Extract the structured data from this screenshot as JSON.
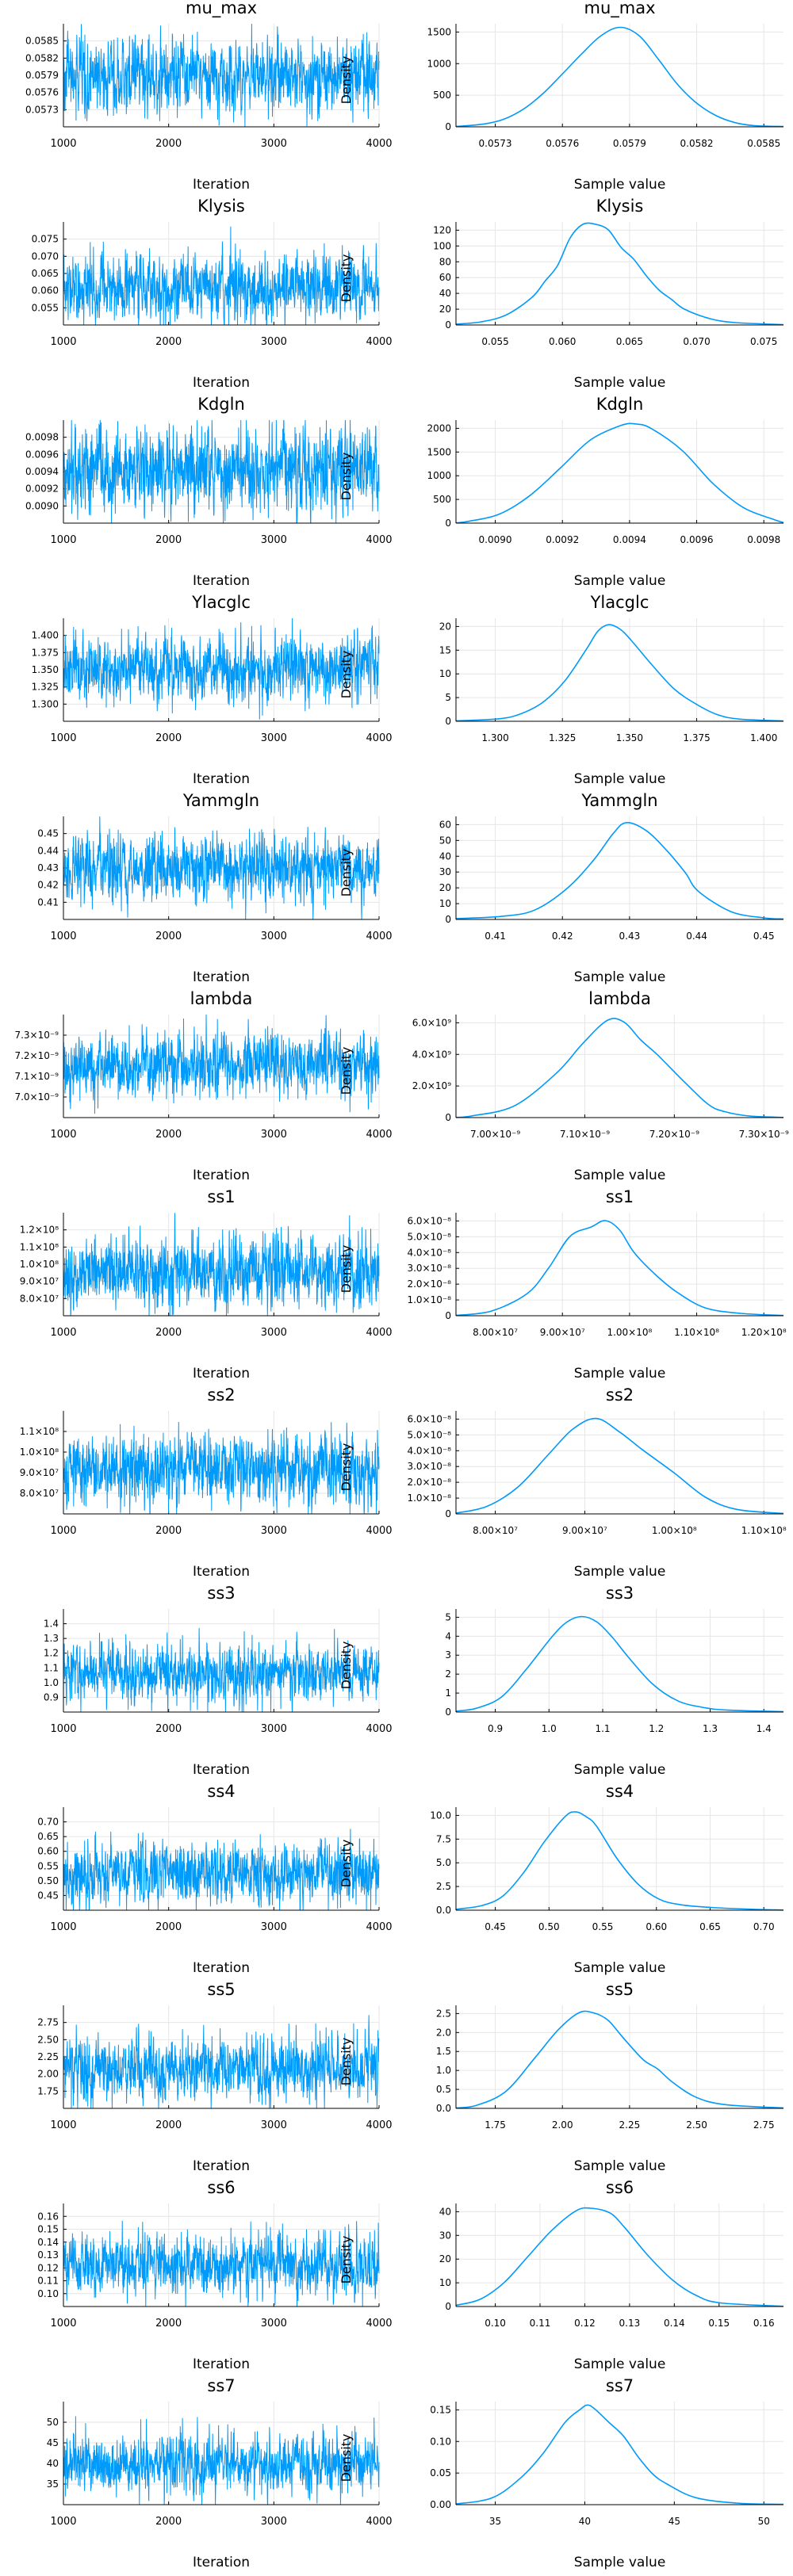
{
  "figure_title": "",
  "chart_data": [
    {
      "param": "mu_max",
      "type": "line",
      "title": "mu_max",
      "xlabel": "Iteration",
      "ylabel": "",
      "xlim": [
        1000,
        4000
      ],
      "xticks": [
        "1000",
        "2000",
        "3000",
        "4000"
      ],
      "yticks": [
        "0.0573",
        "0.0576",
        "0.0579",
        "0.0582",
        "0.0585"
      ],
      "ylim": [
        0.05715,
        0.05865
      ],
      "mean": 0.0579,
      "sd": 0.00024,
      "spike": 0.00055
    },
    {
      "param": "mu_max",
      "type": "line",
      "title": "mu_max",
      "xlabel": "Sample value",
      "ylabel": "Density",
      "xlim": [
        0.05705,
        0.05875
      ],
      "xticks": [
        "0.0573",
        "0.0576",
        "0.0579",
        "0.0582",
        "0.0585"
      ],
      "ylim": [
        0,
        1750
      ],
      "yticks": [
        "0",
        "500",
        "1000",
        "1500"
      ],
      "x": [
        0.05705,
        0.0572,
        0.0573,
        0.0574,
        0.0575,
        0.0576,
        0.0577,
        0.0578,
        0.0579,
        0.058,
        0.0581,
        0.0582,
        0.0583,
        0.0584,
        0.0585,
        0.0586,
        0.05875
      ],
      "y": [
        5,
        50,
        130,
        300,
        560,
        890,
        1230,
        1540,
        1690,
        1550,
        1150,
        720,
        400,
        190,
        70,
        20,
        5
      ]
    },
    {
      "param": "Klysis",
      "type": "line",
      "title": "Klysis",
      "xlabel": "Iteration",
      "ylabel": "",
      "xlim": [
        1000,
        4000
      ],
      "xticks": [
        "1000",
        "2000",
        "3000",
        "4000"
      ],
      "yticks": [
        "0.055",
        "0.060",
        "0.065",
        "0.070",
        "0.075"
      ],
      "ylim": [
        0.052,
        0.077
      ],
      "mean": 0.061,
      "sd": 0.0035,
      "spike": 0.011
    },
    {
      "param": "Klysis",
      "type": "line",
      "title": "Klysis",
      "xlabel": "Sample value",
      "ylabel": "Density",
      "xlim": [
        0.05,
        0.0758
      ],
      "xticks": [
        "0.055",
        "0.060",
        "0.065",
        "0.070",
        "0.075"
      ],
      "ylim": [
        0,
        130
      ],
      "yticks": [
        "0",
        "20",
        "40",
        "60",
        "80",
        "100",
        "120"
      ],
      "x": [
        0.05,
        0.052,
        0.054,
        0.056,
        0.057,
        0.058,
        0.059,
        0.06,
        0.061,
        0.062,
        0.063,
        0.064,
        0.065,
        0.066,
        0.067,
        0.068,
        0.07,
        0.072,
        0.0758
      ],
      "y": [
        1,
        4,
        13,
        35,
        55,
        75,
        110,
        127,
        127,
        120,
        98,
        83,
        62,
        44,
        32,
        20,
        8,
        3,
        0.5
      ]
    },
    {
      "param": "Kdgln",
      "type": "line",
      "title": "Kdgln",
      "xlabel": "Iteration",
      "ylabel": "",
      "xlim": [
        1000,
        4000
      ],
      "xticks": [
        "1000",
        "2000",
        "3000",
        "4000"
      ],
      "yticks": [
        "0.0090",
        "0.0092",
        "0.0094",
        "0.0096",
        "0.0098"
      ],
      "ylim": [
        0.0089,
        0.0099
      ],
      "mean": 0.00941,
      "sd": 0.00018,
      "spike": 0.0005
    },
    {
      "param": "Kdgln",
      "type": "line",
      "title": "Kdgln",
      "xlabel": "Sample value",
      "ylabel": "Density",
      "xlim": [
        0.00886,
        0.00993
      ],
      "xticks": [
        "0.0090",
        "0.0092",
        "0.0094",
        "0.0096",
        "0.0098"
      ],
      "ylim": [
        0,
        2350
      ],
      "yticks": [
        "0",
        "500",
        "1000",
        "1500",
        "2000"
      ],
      "x": [
        0.00886,
        0.0089,
        0.009,
        0.0091,
        0.0092,
        0.0093,
        0.0094,
        0.00945,
        0.0095,
        0.0096,
        0.0097,
        0.0098,
        0.0099,
        0.00993
      ],
      "y": [
        5,
        40,
        200,
        620,
        1250,
        1900,
        2230,
        2260,
        2150,
        1650,
        900,
        350,
        80,
        15
      ]
    },
    {
      "param": "Ylacglc",
      "type": "line",
      "title": "Ylacglc",
      "xlabel": "Iteration",
      "ylabel": "",
      "xlim": [
        1000,
        4000
      ],
      "xticks": [
        "1000",
        "2000",
        "3000",
        "4000"
      ],
      "yticks": [
        "1.300",
        "1.325",
        "1.350",
        "1.375",
        "1.400"
      ],
      "ylim": [
        1.29,
        1.41
      ],
      "mean": 1.351,
      "sd": 0.017,
      "spike": 0.05
    },
    {
      "param": "Ylacglc",
      "type": "line",
      "title": "Ylacglc",
      "xlabel": "Sample value",
      "ylabel": "Density",
      "xlim": [
        1.28,
        1.43
      ],
      "xticks": [
        "1.300",
        "1.325",
        "1.350",
        "1.375",
        "1.400"
      ],
      "ylim": [
        0,
        24
      ],
      "yticks": [
        "0",
        "5",
        "10",
        "15",
        "20"
      ],
      "x": [
        1.28,
        1.3,
        1.31,
        1.32,
        1.33,
        1.34,
        1.345,
        1.35,
        1.355,
        1.36,
        1.37,
        1.38,
        1.39,
        1.4,
        1.41,
        1.43
      ],
      "y": [
        0.1,
        0.6,
        1.8,
        4.5,
        9.5,
        17,
        21,
        22.5,
        21.5,
        19,
        13,
        7.5,
        4,
        1.5,
        0.5,
        0.1
      ]
    },
    {
      "param": "Yammgln",
      "type": "line",
      "title": "Yammgln",
      "xlabel": "Iteration",
      "ylabel": "",
      "xlim": [
        1000,
        4000
      ],
      "xticks": [
        "1000",
        "2000",
        "3000",
        "4000"
      ],
      "yticks": [
        "0.41",
        "0.42",
        "0.43",
        "0.44",
        "0.45"
      ],
      "ylim": [
        0.407,
        0.452
      ],
      "mean": 0.429,
      "sd": 0.0065,
      "spike": 0.018
    },
    {
      "param": "Yammgln",
      "type": "line",
      "title": "Yammgln",
      "xlabel": "Sample value",
      "ylabel": "Density",
      "xlim": [
        0.403,
        0.453
      ],
      "xticks": [
        "0.41",
        "0.42",
        "0.43",
        "0.44",
        "0.45"
      ],
      "ylim": [
        0,
        66
      ],
      "yticks": [
        "0",
        "10",
        "20",
        "30",
        "40",
        "50",
        "60"
      ],
      "x": [
        0.403,
        0.41,
        0.415,
        0.42,
        0.424,
        0.427,
        0.429,
        0.432,
        0.435,
        0.438,
        0.44,
        0.445,
        0.45,
        0.453
      ],
      "y": [
        0.5,
        2,
        6,
        20,
        38,
        55,
        62,
        57,
        45,
        30,
        18,
        5,
        1,
        0.3
      ]
    },
    {
      "param": "lambda",
      "type": "line",
      "title": "lambda",
      "xlabel": "Iteration",
      "ylabel": "",
      "xlim": [
        1000,
        4000
      ],
      "xticks": [
        "1000",
        "2000",
        "3000",
        "4000"
      ],
      "yticks": [
        "7.0×10⁻⁹",
        "7.1×10⁻⁹",
        "7.2×10⁻⁹",
        "7.3×10⁻⁹"
      ],
      "ylim": [
        6.98e-09,
        7.34e-09
      ],
      "mean": 7.165e-09,
      "sd": 5e-11,
      "spike": 1.4e-10
    },
    {
      "param": "lambda",
      "type": "line",
      "title": "lambda",
      "xlabel": "Sample value",
      "ylabel": "Density",
      "xlim": [
        6.98e-09,
        7.37e-09
      ],
      "xticks": [
        "7.00×10⁻⁹",
        "7.10×10⁻⁹",
        "7.20×10⁻⁹",
        "7.30×10⁻⁹"
      ],
      "ylim": [
        0,
        6900000000.0
      ],
      "yticks": [
        "0",
        "2.0×10⁹",
        "4.0×10⁹",
        "6.0×10⁹"
      ],
      "x": [
        6.98e-09,
        7e-09,
        7.05e-09,
        7.1e-09,
        7.13e-09,
        7.16e-09,
        7.18e-09,
        7.2e-09,
        7.22e-09,
        7.25e-09,
        7.28e-09,
        7.3e-09,
        7.33e-09,
        7.37e-09
      ],
      "y": [
        10000000.0,
        120000000.0,
        800000000.0,
        3000000000.0,
        4900000000.0,
        6500000000.0,
        6400000000.0,
        5200000000.0,
        4200000000.0,
        2500000000.0,
        900000000.0,
        400000000.0,
        100000000.0,
        10000000.0
      ]
    },
    {
      "param": "ss1",
      "type": "line",
      "title": "ss1",
      "xlabel": "Iteration",
      "ylabel": "",
      "xlim": [
        1000,
        4000
      ],
      "xticks": [
        "1000",
        "2000",
        "3000",
        "4000"
      ],
      "yticks": [
        "8.0×10⁷",
        "9.0×10⁷",
        "1.0×10⁸",
        "1.1×10⁸",
        "1.2×10⁸"
      ],
      "ylim": [
        77000000.0,
        122000000.0
      ],
      "mean": 96000000.0,
      "sd": 6800000.0,
      "spike": 20000000.0
    },
    {
      "param": "ss1",
      "type": "line",
      "title": "ss1",
      "xlabel": "Sample value",
      "ylabel": "Density",
      "xlim": [
        75000000.0,
        121000000.0
      ],
      "xticks": [
        "8.00×10⁷",
        "9.00×10⁷",
        "1.00×10⁸",
        "1.10×10⁸",
        "1.20×10⁸"
      ],
      "ylim": [
        0,
        6.5e-08
      ],
      "yticks": [
        "0",
        "1.0×10⁻⁸",
        "2.0×10⁻⁸",
        "3.0×10⁻⁸",
        "4.0×10⁻⁸",
        "5.0×10⁻⁸",
        "6.0×10⁻⁸"
      ],
      "x": [
        75000000.0,
        80000000.0,
        85000000.0,
        88000000.0,
        91000000.0,
        94000000.0,
        96000000.0,
        98000000.0,
        100000000.0,
        103000000.0,
        106000000.0,
        110000000.0,
        115000000.0,
        121000000.0
      ],
      "y": [
        2e-10,
        3e-09,
        1.4e-08,
        3e-08,
        5e-08,
        5.6e-08,
        6e-08,
        5.4e-08,
        4e-08,
        2.6e-08,
        1.5e-08,
        5e-09,
        1.5e-09,
        2e-10
      ]
    },
    {
      "param": "ss2",
      "type": "line",
      "title": "ss2",
      "xlabel": "Iteration",
      "ylabel": "",
      "xlim": [
        1000,
        4000
      ],
      "xticks": [
        "1000",
        "2000",
        "3000",
        "4000"
      ],
      "yticks": [
        "8.0×10⁷",
        "9.0×10⁷",
        "1.0×10⁸",
        "1.1×10⁸"
      ],
      "ylim": [
        73000000.0,
        113000000.0
      ],
      "mean": 90000000.0,
      "sd": 6200000.0,
      "spike": 18000000.0
    },
    {
      "param": "ss2",
      "type": "line",
      "title": "ss2",
      "xlabel": "Sample value",
      "ylabel": "Density",
      "xlim": [
        72000000.0,
        114000000.0
      ],
      "xticks": [
        "8.00×10⁷",
        "9.00×10⁷",
        "1.00×10⁸",
        "1.10×10⁸"
      ],
      "ylim": [
        0,
        6.8e-08
      ],
      "yticks": [
        "0",
        "1.0×10⁻⁸",
        "2.0×10⁻⁸",
        "3.0×10⁻⁸",
        "4.0×10⁻⁸",
        "5.0×10⁻⁸",
        "6.0×10⁻⁸"
      ],
      "x": [
        72000000.0,
        76000000.0,
        80000000.0,
        84000000.0,
        87000000.0,
        90000000.0,
        93000000.0,
        96000000.0,
        100000000.0,
        104000000.0,
        108000000.0,
        114000000.0
      ],
      "y": [
        5e-10,
        5e-09,
        1.8e-08,
        4e-08,
        5.6e-08,
        6.3e-08,
        5.4e-08,
        4.2e-08,
        2.7e-08,
        1.1e-08,
        3e-09,
        3e-10
      ]
    },
    {
      "param": "ss3",
      "type": "line",
      "title": "ss3",
      "xlabel": "Iteration",
      "ylabel": "",
      "xlim": [
        1000,
        4000
      ],
      "xticks": [
        "1000",
        "2000",
        "3000",
        "4000"
      ],
      "yticks": [
        "0.9",
        "1.0",
        "1.1",
        "1.2",
        "1.3",
        "1.4"
      ],
      "ylim": [
        0.82,
        1.45
      ],
      "mean": 1.06,
      "sd": 0.075,
      "spike": 0.3
    },
    {
      "param": "ss3",
      "type": "line",
      "title": "ss3",
      "xlabel": "Sample value",
      "ylabel": "Density",
      "xlim": [
        0.81,
        1.46
      ],
      "xticks": [
        "0.9",
        "1.0",
        "1.1",
        "1.2",
        "1.3",
        "1.4"
      ],
      "ylim": [
        0,
        5.5
      ],
      "yticks": [
        "0",
        "1",
        "2",
        "3",
        "4",
        "5"
      ],
      "x": [
        0.81,
        0.85,
        0.9,
        0.95,
        1.0,
        1.03,
        1.06,
        1.09,
        1.12,
        1.15,
        1.2,
        1.25,
        1.3,
        1.35,
        1.46
      ],
      "y": [
        0.05,
        0.2,
        0.8,
        2.3,
        4.0,
        4.8,
        5.1,
        4.8,
        4.0,
        3.0,
        1.5,
        0.6,
        0.25,
        0.1,
        0.02
      ]
    },
    {
      "param": "ss4",
      "type": "line",
      "title": "ss4",
      "xlabel": "Iteration",
      "ylabel": "",
      "xlim": [
        1000,
        4000
      ],
      "xticks": [
        "1000",
        "2000",
        "3000",
        "4000"
      ],
      "yticks": [
        "0.45",
        "0.50",
        "0.55",
        "0.60",
        "0.65",
        "0.70"
      ],
      "ylim": [
        0.43,
        0.72
      ],
      "mean": 0.535,
      "sd": 0.038,
      "spike": 0.13
    },
    {
      "param": "ss4",
      "type": "line",
      "title": "ss4",
      "xlabel": "Sample value",
      "ylabel": "Density",
      "xlim": [
        0.415,
        0.73
      ],
      "xticks": [
        "0.45",
        "0.50",
        "0.55",
        "0.60",
        "0.65",
        "0.70"
      ],
      "ylim": [
        0,
        11
      ],
      "yticks": [
        "0.0",
        "2.5",
        "5.0",
        "7.5",
        "10.0"
      ],
      "x": [
        0.415,
        0.44,
        0.46,
        0.48,
        0.5,
        0.52,
        0.53,
        0.54,
        0.55,
        0.57,
        0.59,
        0.61,
        0.63,
        0.66,
        0.7,
        0.73
      ],
      "y": [
        0.1,
        0.5,
        1.5,
        4.0,
        7.3,
        10.0,
        10.5,
        10.0,
        9.0,
        5.5,
        2.8,
        1.2,
        0.6,
        0.3,
        0.1,
        0.02
      ]
    },
    {
      "param": "ss5",
      "type": "line",
      "title": "ss5",
      "xlabel": "Iteration",
      "ylabel": "",
      "xlim": [
        1000,
        4000
      ],
      "xticks": [
        "1000",
        "2000",
        "3000",
        "4000"
      ],
      "yticks": [
        "1.75",
        "2.00",
        "2.25",
        "2.50",
        "2.75"
      ],
      "ylim": [
        1.7,
        2.8
      ],
      "mean": 2.12,
      "sd": 0.15,
      "spike": 0.5
    },
    {
      "param": "ss5",
      "type": "line",
      "title": "ss5",
      "xlabel": "Sample value",
      "ylabel": "Density",
      "xlim": [
        1.68,
        2.8
      ],
      "xticks": [
        "1.75",
        "2.00",
        "2.25",
        "2.50",
        "2.75"
      ],
      "ylim": [
        0,
        2.75
      ],
      "yticks": [
        "0.0",
        "0.5",
        "1.0",
        "1.5",
        "2.0",
        "2.5"
      ],
      "x": [
        1.68,
        1.75,
        1.85,
        1.95,
        2.03,
        2.1,
        2.15,
        2.2,
        2.25,
        2.32,
        2.37,
        2.42,
        2.5,
        2.6,
        2.8
      ],
      "y": [
        0.01,
        0.08,
        0.45,
        1.35,
        2.1,
        2.55,
        2.55,
        2.35,
        1.9,
        1.3,
        1.05,
        0.7,
        0.3,
        0.1,
        0.01
      ]
    },
    {
      "param": "ss6",
      "type": "line",
      "title": "ss6",
      "xlabel": "Iteration",
      "ylabel": "",
      "xlim": [
        1000,
        4000
      ],
      "xticks": [
        "1000",
        "2000",
        "3000",
        "4000"
      ],
      "yticks": [
        "0.10",
        "0.11",
        "0.12",
        "0.13",
        "0.14",
        "0.15",
        "0.16"
      ],
      "ylim": [
        0.097,
        0.165
      ],
      "mean": 0.124,
      "sd": 0.009,
      "spike": 0.03
    },
    {
      "param": "ss6",
      "type": "line",
      "title": "ss6",
      "xlabel": "Sample value",
      "ylabel": "Density",
      "xlim": [
        0.095,
        0.163
      ],
      "xticks": [
        "0.10",
        "0.11",
        "0.12",
        "0.13",
        "0.14",
        "0.15",
        "0.16"
      ],
      "ylim": [
        0,
        43
      ],
      "yticks": [
        "0",
        "10",
        "20",
        "30",
        "40"
      ],
      "x": [
        0.095,
        0.1,
        0.105,
        0.11,
        0.115,
        0.12,
        0.123,
        0.127,
        0.13,
        0.135,
        0.14,
        0.145,
        0.15,
        0.163
      ],
      "y": [
        0.5,
        3,
        10,
        21,
        32,
        40,
        41,
        39,
        33,
        21,
        11,
        4.5,
        1.5,
        0.1
      ]
    },
    {
      "param": "ss7",
      "type": "line",
      "title": "ss7",
      "xlabel": "Iteration",
      "ylabel": "",
      "xlim": [
        1000,
        4000
      ],
      "xticks": [
        "1000",
        "2000",
        "3000",
        "4000"
      ],
      "yticks": [
        "35",
        "40",
        "45",
        "50"
      ],
      "ylim": [
        31.5,
        53
      ],
      "mean": 40,
      "sd": 2.7,
      "spike": 10
    },
    {
      "param": "ss7",
      "type": "line",
      "title": "ss7",
      "xlabel": "Sample value",
      "ylabel": "Density",
      "xlim": [
        30.5,
        53
      ],
      "xticks": [
        "35",
        "40",
        "45",
        "50"
      ],
      "ylim": [
        0,
        0.15
      ],
      "yticks": [
        "0.00",
        "0.05",
        "0.10",
        "0.15"
      ],
      "x": [
        30.5,
        33,
        35,
        36.5,
        38,
        39,
        39.5,
        40,
        41,
        42,
        43,
        44,
        45,
        47,
        50,
        53
      ],
      "y": [
        0.001,
        0.01,
        0.04,
        0.075,
        0.12,
        0.138,
        0.145,
        0.14,
        0.12,
        0.1,
        0.07,
        0.045,
        0.03,
        0.01,
        0.002,
        0.0005
      ]
    }
  ]
}
